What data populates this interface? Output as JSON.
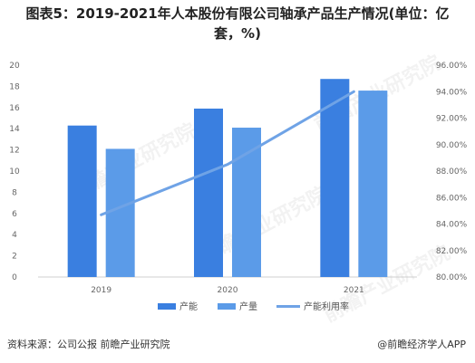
{
  "title_line1": "图表5：2019-2021年人本股份有限公司轴承产品生产情况(单位：亿",
  "title_line2": "套，%)",
  "footer": {
    "source": "资料来源：公司公报 前瞻产业研究院",
    "brand": "@前瞻经济学人APP"
  },
  "watermark": "前瞻产业研究院",
  "colors": {
    "capacity": "#3a7fe0",
    "output": "#5b9be8",
    "utilization": "#6fa3e6",
    "grid": "#e5e5e5"
  },
  "chart_data": {
    "type": "bar",
    "categories": [
      "2019",
      "2020",
      "2021"
    ],
    "series": [
      {
        "name": "产能",
        "axis": "left",
        "values": [
          14.3,
          15.9,
          18.7
        ]
      },
      {
        "name": "产量",
        "axis": "left",
        "values": [
          12.1,
          14.1,
          17.6
        ]
      },
      {
        "name": "产能利用率",
        "axis": "right",
        "type": "line",
        "values": [
          84.7,
          88.5,
          94.0
        ]
      }
    ],
    "y_left": {
      "range": [
        0,
        20
      ],
      "ticks": [
        "0",
        "2",
        "4",
        "6",
        "8",
        "10",
        "12",
        "14",
        "16",
        "18",
        "20"
      ]
    },
    "y_right": {
      "range": [
        80,
        96
      ],
      "ticks": [
        "80.00%",
        "82.00%",
        "84.00%",
        "86.00%",
        "88.00%",
        "90.00%",
        "92.00%",
        "94.00%",
        "96.00%"
      ]
    },
    "grid": false,
    "legend_position": "bottom"
  }
}
